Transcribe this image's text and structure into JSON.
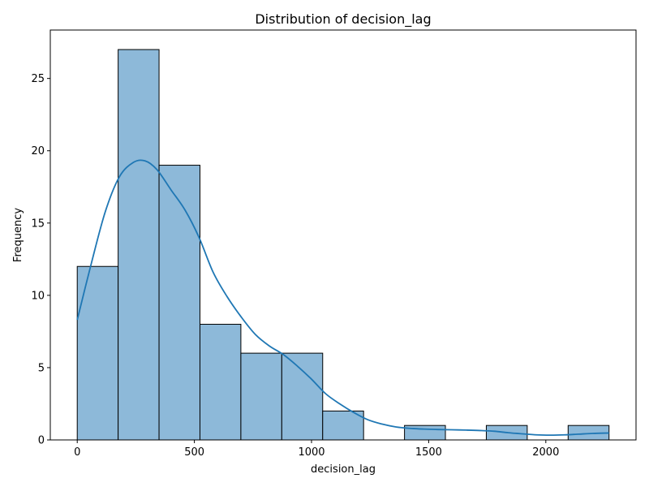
{
  "chart_data": {
    "type": "bar",
    "title": "Distribution of decision_lag",
    "xlabel": "decision_lag",
    "ylabel": "Frequency",
    "bin_edges": [
      0,
      174.6,
      349.2,
      523.8,
      698.4,
      873.0,
      1047.6,
      1222.2,
      1396.8,
      1571.4,
      1746.0,
      1920.6,
      2095.2,
      2269.8
    ],
    "values": [
      12,
      27,
      19,
      8,
      6,
      6,
      2,
      0,
      1,
      0,
      1,
      0,
      1
    ],
    "xlim": [
      -115,
      2385
    ],
    "ylim": [
      0,
      28.35
    ],
    "xticks": [
      0,
      500,
      1000,
      1500,
      2000
    ],
    "yticks": [
      0,
      5,
      10,
      15,
      20,
      25
    ],
    "kde": {
      "x": [
        0,
        60,
        120,
        180,
        240,
        290,
        340,
        400,
        460,
        520,
        580,
        640,
        700,
        760,
        820,
        880,
        940,
        1000,
        1060,
        1120,
        1180,
        1240,
        1300,
        1360,
        1420,
        1480,
        1540,
        1600,
        1660,
        1720,
        1780,
        1840,
        1900,
        1960,
        2020,
        2080,
        2140,
        2200,
        2270
      ],
      "y": [
        8.3,
        12.2,
        15.8,
        18.2,
        19.2,
        19.3,
        18.7,
        17.3,
        15.9,
        14.0,
        11.6,
        9.9,
        8.5,
        7.3,
        6.5,
        5.9,
        5.1,
        4.2,
        3.2,
        2.5,
        1.9,
        1.4,
        1.1,
        0.9,
        0.8,
        0.75,
        0.72,
        0.7,
        0.68,
        0.65,
        0.6,
        0.5,
        0.42,
        0.35,
        0.33,
        0.35,
        0.4,
        0.45,
        0.48
      ]
    },
    "colors": {
      "bar_fill": "#8db9d9",
      "bar_edge": "#000000",
      "kde_line": "#1f77b4"
    },
    "grid": false,
    "legend": "none"
  }
}
